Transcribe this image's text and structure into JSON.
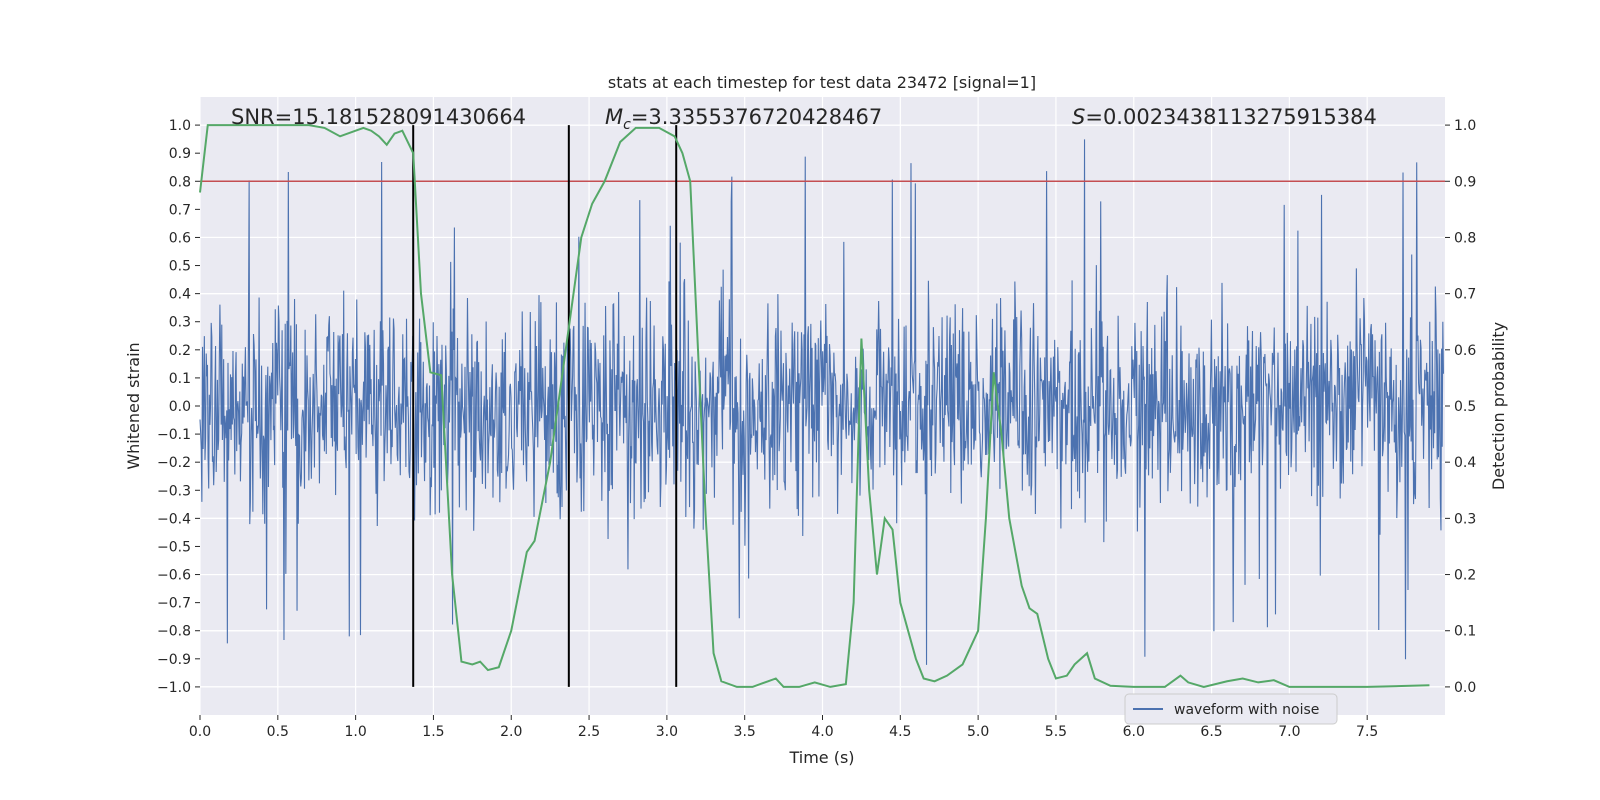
{
  "chart_data": {
    "type": "line",
    "title": "stats at each timestep for test data 23472 [signal=1]",
    "xlabel": "Time (s)",
    "ylabel": "Whitened strain",
    "y2label": "Detection probability",
    "xlim": [
      0.0,
      8.0
    ],
    "ylim": [
      -1.1,
      1.1
    ],
    "y2lim": [
      -0.05,
      1.05
    ],
    "x_ticks": [
      0.0,
      0.5,
      1.0,
      1.5,
      2.0,
      2.5,
      3.0,
      3.5,
      4.0,
      4.5,
      5.0,
      5.5,
      6.0,
      6.5,
      7.0,
      7.5
    ],
    "x_tick_labels": [
      "0.0",
      "0.5",
      "1.0",
      "1.5",
      "2.0",
      "2.5",
      "3.0",
      "3.5",
      "4.0",
      "4.5",
      "5.0",
      "5.5",
      "6.0",
      "6.5",
      "7.0",
      "7.5"
    ],
    "y_ticks": [
      -1.0,
      -0.9,
      -0.8,
      -0.7,
      -0.6,
      -0.5,
      -0.4,
      -0.3,
      -0.2,
      -0.1,
      0.0,
      0.1,
      0.2,
      0.3,
      0.4,
      0.5,
      0.6,
      0.7,
      0.8,
      0.9,
      1.0
    ],
    "y_tick_labels": [
      "−1.0",
      "−0.9",
      "−0.8",
      "−0.7",
      "−0.6",
      "−0.5",
      "−0.4",
      "−0.3",
      "−0.2",
      "−0.1",
      "0.0",
      "0.1",
      "0.2",
      "0.3",
      "0.4",
      "0.5",
      "0.6",
      "0.7",
      "0.8",
      "0.9",
      "1.0"
    ],
    "y2_ticks": [
      0.0,
      0.1,
      0.2,
      0.3,
      0.4,
      0.5,
      0.6,
      0.7,
      0.8,
      0.9,
      1.0
    ],
    "y2_tick_labels": [
      "0.0",
      "0.1",
      "0.2",
      "0.3",
      "0.4",
      "0.5",
      "0.6",
      "0.7",
      "0.8",
      "0.9",
      "1.0"
    ],
    "grid": true,
    "waveform": {
      "name": "waveform with noise",
      "color": "#4c72b0",
      "sample_count": 2000,
      "typical_envelope": 0.45,
      "peak_amplitude": 0.95,
      "seed": 23472
    },
    "threshold": {
      "y2": 0.9,
      "color": "#c44e52"
    },
    "detection_probability": {
      "color": "#55a868",
      "points": [
        [
          0.0,
          0.88
        ],
        [
          0.05,
          1.0
        ],
        [
          0.1,
          1.0
        ],
        [
          0.3,
          1.0
        ],
        [
          0.5,
          1.0
        ],
        [
          0.7,
          1.0
        ],
        [
          0.8,
          0.995
        ],
        [
          0.9,
          0.98
        ],
        [
          1.0,
          0.99
        ],
        [
          1.05,
          0.995
        ],
        [
          1.1,
          0.99
        ],
        [
          1.15,
          0.98
        ],
        [
          1.2,
          0.965
        ],
        [
          1.25,
          0.985
        ],
        [
          1.3,
          0.99
        ],
        [
          1.37,
          0.95
        ],
        [
          1.42,
          0.7
        ],
        [
          1.48,
          0.56
        ],
        [
          1.55,
          0.555
        ],
        [
          1.62,
          0.2
        ],
        [
          1.68,
          0.045
        ],
        [
          1.75,
          0.04
        ],
        [
          1.8,
          0.045
        ],
        [
          1.85,
          0.03
        ],
        [
          1.92,
          0.035
        ],
        [
          2.0,
          0.1
        ],
        [
          2.1,
          0.24
        ],
        [
          2.15,
          0.26
        ],
        [
          2.25,
          0.4
        ],
        [
          2.35,
          0.6
        ],
        [
          2.45,
          0.8
        ],
        [
          2.52,
          0.86
        ],
        [
          2.6,
          0.9
        ],
        [
          2.7,
          0.97
        ],
        [
          2.8,
          0.995
        ],
        [
          2.95,
          0.995
        ],
        [
          3.05,
          0.98
        ],
        [
          3.1,
          0.95
        ],
        [
          3.15,
          0.9
        ],
        [
          3.2,
          0.6
        ],
        [
          3.25,
          0.3
        ],
        [
          3.3,
          0.06
        ],
        [
          3.35,
          0.01
        ],
        [
          3.45,
          0.0
        ],
        [
          3.55,
          0.0
        ],
        [
          3.65,
          0.01
        ],
        [
          3.7,
          0.015
        ],
        [
          3.75,
          0.0
        ],
        [
          3.85,
          0.0
        ],
        [
          3.95,
          0.008
        ],
        [
          4.05,
          0.0
        ],
        [
          4.15,
          0.005
        ],
        [
          4.2,
          0.15
        ],
        [
          4.25,
          0.62
        ],
        [
          4.3,
          0.35
        ],
        [
          4.35,
          0.2
        ],
        [
          4.4,
          0.3
        ],
        [
          4.45,
          0.28
        ],
        [
          4.5,
          0.15
        ],
        [
          4.6,
          0.05
        ],
        [
          4.65,
          0.015
        ],
        [
          4.72,
          0.01
        ],
        [
          4.8,
          0.02
        ],
        [
          4.9,
          0.04
        ],
        [
          5.0,
          0.1
        ],
        [
          5.05,
          0.3
        ],
        [
          5.1,
          0.56
        ],
        [
          5.15,
          0.45
        ],
        [
          5.2,
          0.3
        ],
        [
          5.28,
          0.18
        ],
        [
          5.33,
          0.14
        ],
        [
          5.38,
          0.13
        ],
        [
          5.45,
          0.05
        ],
        [
          5.5,
          0.015
        ],
        [
          5.57,
          0.02
        ],
        [
          5.62,
          0.04
        ],
        [
          5.7,
          0.06
        ],
        [
          5.75,
          0.015
        ],
        [
          5.85,
          0.002
        ],
        [
          6.0,
          0.0
        ],
        [
          6.2,
          0.0
        ],
        [
          6.3,
          0.02
        ],
        [
          6.35,
          0.008
        ],
        [
          6.45,
          0.0
        ],
        [
          6.6,
          0.01
        ],
        [
          6.7,
          0.015
        ],
        [
          6.8,
          0.008
        ],
        [
          6.9,
          0.012
        ],
        [
          7.0,
          0.0
        ],
        [
          7.2,
          0.0
        ],
        [
          7.5,
          0.0
        ],
        [
          7.9,
          0.003
        ]
      ]
    },
    "vertical_markers": [
      1.37,
      2.37,
      3.06
    ],
    "annotations": {
      "snr": "SNR=15.181528091430664",
      "mc_symbol": "M",
      "mc_subscript": "c",
      "mc_value": "=3.3355376720428467",
      "s_symbol": "S",
      "s_value": "=0.0023438113275915384"
    },
    "legend": {
      "label": "waveform with noise",
      "location": "lower-right"
    }
  },
  "colors": {
    "axes_background": "#eaeaf2",
    "grid": "#ffffff",
    "text": "#262626"
  }
}
